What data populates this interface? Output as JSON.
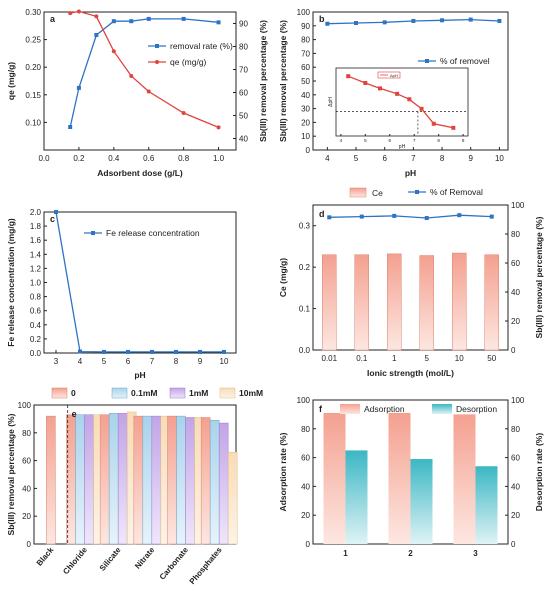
{
  "colors": {
    "blue": "#2e73c4",
    "red": "#e0443c",
    "salmon": "#f4a08f",
    "teal": "#3bb7c4",
    "lightblue": "#a9d3ec",
    "purple": "#c2a4e8",
    "cream": "#f8dcb6"
  },
  "chart_data": [
    {
      "panel": "a",
      "type": "line",
      "xlabel": "Adsorbent dose (g/L)",
      "ylabel": "qe (mg/g)",
      "y2label": "Sb(III) removal percentage (%)",
      "xlim": [
        0.0,
        1.1
      ],
      "ylim": [
        0.05,
        0.3
      ],
      "y2lim": [
        35,
        95
      ],
      "xticks": [
        "0.0",
        "0.2",
        "0.4",
        "0.6",
        "0.8",
        "1.0"
      ],
      "yticks": [
        "0.10",
        "0.15",
        "0.20",
        "0.25",
        "0.30"
      ],
      "y2ticks": [
        "40",
        "50",
        "60",
        "70",
        "80",
        "90"
      ],
      "series": [
        {
          "name": "removal rate (%)",
          "axis": "y2",
          "color": "#2e73c4",
          "x": [
            0.15,
            0.2,
            0.3,
            0.4,
            0.5,
            0.6,
            0.8,
            1.0
          ],
          "y": [
            45,
            62,
            85,
            91,
            91,
            92,
            92,
            90.5
          ]
        },
        {
          "name": "qe (mg/g)",
          "axis": "y",
          "color": "#e0443c",
          "x": [
            0.15,
            0.2,
            0.3,
            0.4,
            0.5,
            0.6,
            0.8,
            1.0
          ],
          "y": [
            0.298,
            0.301,
            0.292,
            0.229,
            0.184,
            0.156,
            0.117,
            0.091
          ]
        }
      ]
    },
    {
      "panel": "b",
      "type": "line",
      "xlabel": "pH",
      "ylabel": "Sb(III) removal percentage (%)",
      "xlim": [
        3.5,
        10.3
      ],
      "ylim": [
        0,
        100
      ],
      "xticks": [
        "4",
        "5",
        "6",
        "7",
        "8",
        "9",
        "10"
      ],
      "yticks": [
        "0",
        "10",
        "20",
        "30",
        "40",
        "50",
        "60",
        "70",
        "80",
        "90",
        "100"
      ],
      "series": [
        {
          "name": "% of removel",
          "color": "#2e73c4",
          "x": [
            4,
            5,
            6,
            7,
            8,
            9,
            10
          ],
          "y": [
            91.5,
            92,
            92.5,
            93.5,
            94,
            94.5,
            93.5
          ]
        }
      ],
      "inset": {
        "type": "line",
        "xlabel": "pH",
        "ylabel": "ΔpH",
        "xticks": [
          "4",
          "5",
          "6",
          "7",
          "8",
          "9"
        ],
        "legend": "ΔpH",
        "x": [
          4.3,
          5,
          5.6,
          6.3,
          6.8,
          7.3,
          7.8,
          8.6
        ],
        "y": [
          2.6,
          2.1,
          1.7,
          1.3,
          0.9,
          0.2,
          -0.9,
          -1.2
        ],
        "zero_crossing": 7.15
      }
    },
    {
      "panel": "c",
      "type": "line",
      "xlabel": "pH",
      "ylabel": "Fe release concentration (mg/g)",
      "xlim": [
        2.5,
        10.5
      ],
      "ylim": [
        0,
        2
      ],
      "xticks": [
        "3",
        "4",
        "5",
        "6",
        "7",
        "8",
        "9",
        "10"
      ],
      "yticks": [
        "0.0",
        "0.2",
        "0.4",
        "0.6",
        "0.8",
        "1.0",
        "1.2",
        "1.4",
        "1.6",
        "1.8",
        "2.0"
      ],
      "series": [
        {
          "name": "Fe release concentration",
          "color": "#2e73c4",
          "x": [
            3,
            4,
            5,
            6,
            7,
            8,
            9,
            10
          ],
          "y": [
            2.0,
            0.02,
            0.015,
            0.015,
            0.015,
            0.015,
            0.015,
            0.015
          ]
        }
      ]
    },
    {
      "panel": "d",
      "type": "bar",
      "xlabel": "Ionic strength (mol/L)",
      "ylabel": "Ce (mg/g)",
      "y2label": "Sb(III) removal percentage (%)",
      "categories": [
        "0.01",
        "0.1",
        "1",
        "5",
        "10",
        "50"
      ],
      "ylim": [
        0,
        0.35
      ],
      "y2lim": [
        0,
        100
      ],
      "yticks": [
        "0.0",
        "0.1",
        "0.2",
        "0.3"
      ],
      "y2ticks": [
        "0",
        "20",
        "40",
        "60",
        "80",
        "100"
      ],
      "series": [
        {
          "name": "Ce",
          "type": "bar",
          "color": "#f4a08f",
          "values": [
            0.23,
            0.23,
            0.232,
            0.228,
            0.234,
            0.23
          ]
        },
        {
          "name": "% of Removal",
          "type": "line",
          "axis": "y2",
          "color": "#2e73c4",
          "values": [
            91.5,
            92,
            92.5,
            91,
            93,
            92
          ]
        }
      ]
    },
    {
      "panel": "e",
      "type": "bar",
      "ylabel": "Sb(III) removal percentage (%)",
      "categories": [
        "Black",
        "Chloride",
        "Silicate",
        "Nitrate",
        "Carbonate",
        "Phosphates"
      ],
      "ylim": [
        0,
        100
      ],
      "yticks": [
        "0",
        "20",
        "40",
        "60",
        "80",
        "100"
      ],
      "series": [
        {
          "name": "0",
          "color": "#f4a08f",
          "values": [
            92,
            93,
            93,
            92,
            92,
            91
          ]
        },
        {
          "name": "0.1mM",
          "color": "#a9d3ec",
          "values": [
            null,
            93,
            94,
            92,
            92,
            89
          ]
        },
        {
          "name": "1mM",
          "color": "#c2a4e8",
          "values": [
            null,
            93,
            94,
            92,
            91,
            87
          ]
        },
        {
          "name": "10mM",
          "color": "#f8dcb6",
          "values": [
            null,
            93,
            95,
            92,
            91,
            66
          ]
        }
      ]
    },
    {
      "panel": "f",
      "type": "bar",
      "ylabel": "Adsorption rate (%)",
      "y2label": "Desorption rate (%)",
      "categories": [
        "1",
        "2",
        "3"
      ],
      "ylim": [
        0,
        100
      ],
      "y2lim": [
        0,
        100
      ],
      "yticks": [
        "0",
        "20",
        "40",
        "60",
        "80",
        "100"
      ],
      "y2ticks": [
        "0",
        "20",
        "40",
        "60",
        "80",
        "100"
      ],
      "series": [
        {
          "name": "Adsorption",
          "color": "#f4a08f",
          "values": [
            91,
            91,
            90
          ]
        },
        {
          "name": "Desorption",
          "axis": "y2",
          "color": "#3bb7c4",
          "values": [
            65,
            59,
            54
          ]
        }
      ]
    }
  ]
}
